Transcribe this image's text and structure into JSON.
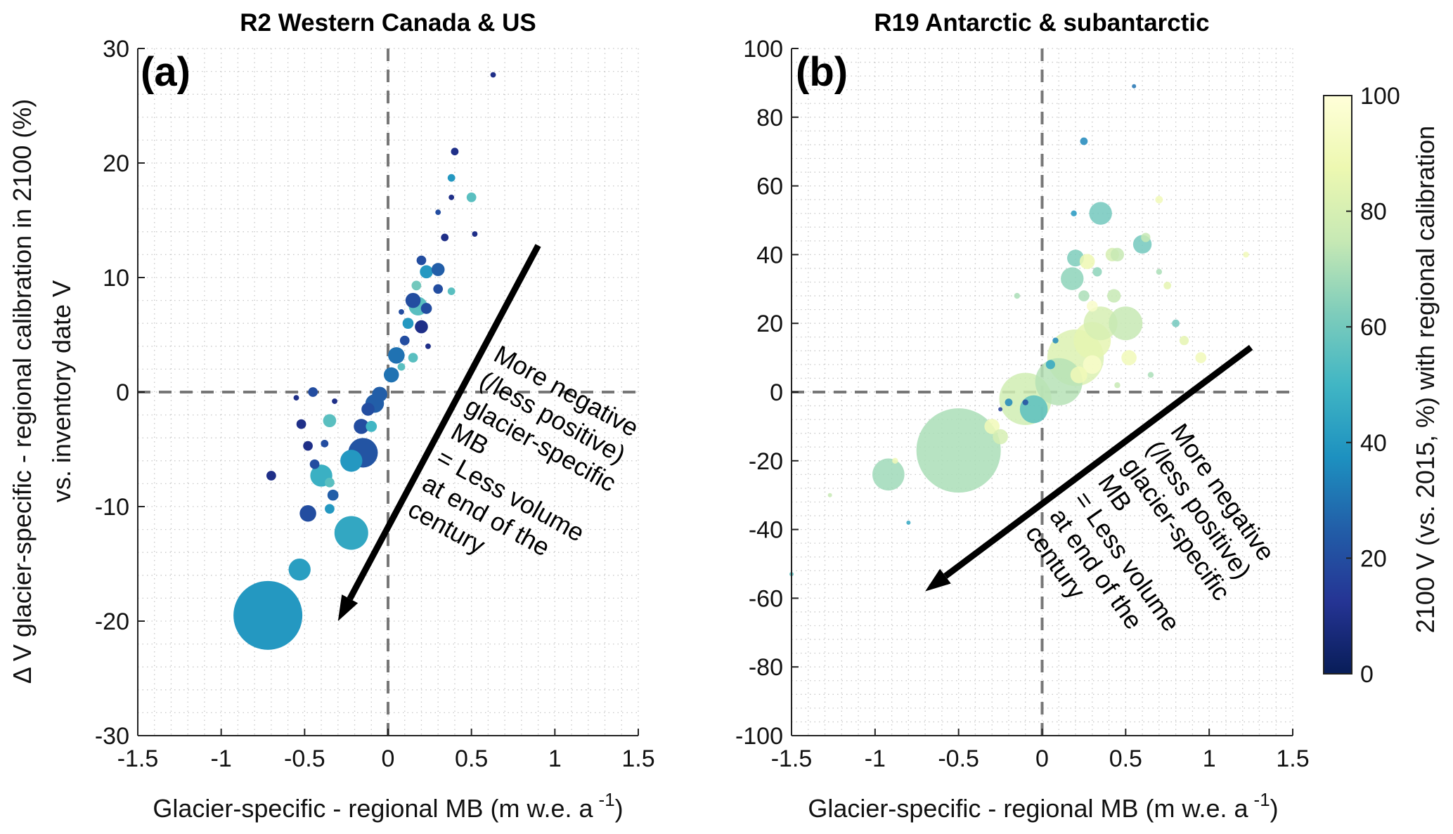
{
  "chart_data": [
    {
      "type": "scatter",
      "panel_label": "(a)",
      "title": "R2 Western Canada & US",
      "xlabel": "Glacier-specific - regional MB (m w.e. a",
      "xlabel_sup": "-1",
      "xlabel_end": ")",
      "ylabel": [
        "Δ V glacier-specific - regional calibration in 2100 (%)",
        "vs. inventory date V"
      ],
      "xlim": [
        -1.5,
        1.5
      ],
      "ylim": [
        -30,
        30
      ],
      "xticks": [
        -1.5,
        -1,
        -0.5,
        0,
        0.5,
        1,
        1.5
      ],
      "yticks": [
        -30,
        -20,
        -10,
        0,
        10,
        20,
        30
      ],
      "grid": "minor dotted",
      "reference_lines": {
        "x": 0,
        "y": 0,
        "style": "dashed"
      },
      "annotation": {
        "lines": [
          "More negative",
          "(/less positive)",
          "glacier-specific",
          "MB",
          "= Less volume",
          "at end of the",
          "century"
        ],
        "arrow_from": [
          0.9,
          12.8
        ],
        "arrow_to": [
          -0.3,
          -20
        ]
      },
      "point_fields": [
        "x",
        "y",
        "relative_size",
        "color_value"
      ],
      "points": [
        [
          -0.72,
          -19.5,
          10,
          40
        ],
        [
          -0.53,
          -15.5,
          3.2,
          42
        ],
        [
          -0.22,
          -12.3,
          4.9,
          45
        ],
        [
          -0.48,
          -10.6,
          2.4,
          20
        ],
        [
          -0.4,
          -7.3,
          3.2,
          48
        ],
        [
          -0.22,
          -6,
          3.2,
          40
        ],
        [
          -0.15,
          -5.3,
          4.3,
          22
        ],
        [
          -0.33,
          -9,
          1.6,
          25
        ],
        [
          -0.35,
          -7.9,
          1.4,
          55
        ],
        [
          -0.35,
          -10.2,
          1.4,
          40
        ],
        [
          -0.7,
          -7.3,
          1.4,
          10
        ],
        [
          -0.52,
          -2.8,
          1.4,
          10
        ],
        [
          -0.48,
          -4.7,
          1.4,
          10
        ],
        [
          -0.35,
          -2.5,
          1.9,
          55
        ],
        [
          -0.38,
          -4.5,
          1.1,
          20
        ],
        [
          -0.16,
          -3,
          2.2,
          20
        ],
        [
          -0.1,
          -3,
          1.6,
          50
        ],
        [
          -0.12,
          -1.5,
          1.9,
          20
        ],
        [
          -0.08,
          -1,
          2.7,
          25
        ],
        [
          -0.05,
          -0.2,
          2.2,
          25
        ],
        [
          0.02,
          1.5,
          2.2,
          30
        ],
        [
          0.05,
          3.2,
          2.4,
          30
        ],
        [
          0.1,
          4.5,
          1.4,
          20
        ],
        [
          0.12,
          6,
          1.6,
          40
        ],
        [
          0.15,
          3,
          1.4,
          55
        ],
        [
          0.08,
          2.2,
          1.1,
          55
        ],
        [
          0.15,
          8,
          2.2,
          20
        ],
        [
          0.18,
          7.5,
          2.7,
          55
        ],
        [
          0.2,
          5.7,
          1.9,
          10
        ],
        [
          0.23,
          7.3,
          1.6,
          20
        ],
        [
          0.17,
          9.3,
          1.4,
          60
        ],
        [
          0.23,
          10.5,
          1.9,
          40
        ],
        [
          0.2,
          11.5,
          1.4,
          20
        ],
        [
          0.3,
          10.7,
          1.9,
          25
        ],
        [
          0.3,
          9,
          1.4,
          20
        ],
        [
          0.38,
          8.8,
          1.1,
          55
        ],
        [
          0.34,
          13.5,
          1.1,
          10
        ],
        [
          0.4,
          21,
          1.1,
          10
        ],
        [
          0.38,
          18.7,
          1.1,
          40
        ],
        [
          0.5,
          17,
          1.4,
          55
        ],
        [
          0.3,
          15.7,
          0.8,
          20
        ],
        [
          0.52,
          13.8,
          0.8,
          10
        ],
        [
          0.63,
          27.7,
          0.8,
          10
        ],
        [
          0.38,
          17,
          0.8,
          10
        ],
        [
          0.08,
          7,
          0.8,
          20
        ],
        [
          0.24,
          4,
          0.8,
          10
        ],
        [
          -0.45,
          0,
          1.4,
          20
        ],
        [
          -0.55,
          -0.5,
          0.8,
          10
        ],
        [
          -0.32,
          -0.8,
          0.8,
          10
        ],
        [
          -0.44,
          -6.3,
          1.4,
          20
        ]
      ]
    },
    {
      "type": "scatter",
      "panel_label": "(b)",
      "title": "R19 Antarctic & subantarctic",
      "xlabel": "Glacier-specific - regional MB (m w.e. a",
      "xlabel_sup": "-1",
      "xlabel_end": ")",
      "xlim": [
        -1.5,
        1.5
      ],
      "ylim": [
        -100,
        100
      ],
      "xticks": [
        -1.5,
        -1,
        -0.5,
        0,
        0.5,
        1,
        1.5
      ],
      "yticks": [
        -100,
        -80,
        -60,
        -40,
        -20,
        0,
        20,
        40,
        60,
        80,
        100
      ],
      "grid": "minor dotted",
      "reference_lines": {
        "x": 0,
        "y": 0,
        "style": "dashed"
      },
      "annotation": {
        "lines": [
          "More negative",
          "(/less positive)",
          "glacier-specific",
          "MB",
          "= Less volume",
          "at end of the",
          "century"
        ],
        "arrow_from": [
          1.25,
          13
        ],
        "arrow_to": [
          -0.7,
          -58
        ]
      },
      "point_fields": [
        "x",
        "y",
        "relative_size",
        "color_value"
      ],
      "points": [
        [
          -0.5,
          -17,
          10,
          70
        ],
        [
          -0.92,
          -24,
          3.8,
          68
        ],
        [
          -0.3,
          -10,
          1.8,
          90
        ],
        [
          -0.25,
          -13,
          1.8,
          80
        ],
        [
          -0.1,
          -2,
          6.2,
          78
        ],
        [
          -0.05,
          -5,
          3.3,
          55
        ],
        [
          0.1,
          3,
          5.6,
          72
        ],
        [
          0.2,
          10,
          6.7,
          82
        ],
        [
          0.3,
          15,
          4.4,
          85
        ],
        [
          0.35,
          20,
          4,
          80
        ],
        [
          0.5,
          20,
          4,
          75
        ],
        [
          0.35,
          52,
          2.7,
          60
        ],
        [
          0.6,
          43,
          2.2,
          60
        ],
        [
          0.2,
          39,
          2,
          62
        ],
        [
          0.18,
          33,
          2.7,
          65
        ],
        [
          0.27,
          38,
          1.8,
          88
        ],
        [
          0.42,
          40,
          1.6,
          80
        ],
        [
          0.45,
          40,
          1.6,
          75
        ],
        [
          0.43,
          28,
          1.6,
          75
        ],
        [
          0.25,
          28,
          1.3,
          70
        ],
        [
          0.33,
          35,
          1.1,
          65
        ],
        [
          0.3,
          25,
          1.3,
          95
        ],
        [
          0.52,
          10,
          1.8,
          90
        ],
        [
          0.3,
          8,
          2.2,
          95
        ],
        [
          0.22,
          5,
          2,
          90
        ],
        [
          0.62,
          45,
          1.1,
          75
        ],
        [
          0.85,
          15,
          1.1,
          85
        ],
        [
          0.95,
          10,
          1.3,
          90
        ],
        [
          0.8,
          20,
          0.9,
          60
        ],
        [
          0.25,
          73,
          0.9,
          35
        ],
        [
          0.19,
          52,
          0.7,
          40
        ],
        [
          0.55,
          89,
          0.5,
          30
        ],
        [
          -0.8,
          -38,
          0.5,
          45
        ],
        [
          -1.5,
          -53,
          0.5,
          55
        ],
        [
          0.7,
          56,
          0.9,
          90
        ],
        [
          -0.15,
          28,
          0.7,
          70
        ],
        [
          1.22,
          40,
          0.7,
          90
        ],
        [
          0.08,
          15,
          0.7,
          35
        ],
        [
          -0.1,
          -3,
          0.7,
          20
        ],
        [
          -0.25,
          -5,
          0.5,
          15
        ],
        [
          -0.88,
          -20,
          0.7,
          90
        ],
        [
          -1.27,
          -30,
          0.5,
          75
        ],
        [
          0.7,
          35,
          0.7,
          70
        ],
        [
          0.75,
          31,
          0.9,
          85
        ],
        [
          0.65,
          5,
          0.7,
          70
        ],
        [
          0.45,
          2,
          0.7,
          75
        ],
        [
          -0.2,
          -3,
          0.9,
          35
        ],
        [
          0.05,
          8,
          1.1,
          45
        ]
      ],
      "colorbar": {
        "label": "2100 V (vs. 2015, %) with regional calibration",
        "range": [
          0,
          100
        ],
        "ticks": [
          0,
          20,
          40,
          60,
          80,
          100
        ],
        "colormap": [
          "#081d58",
          "#253494",
          "#225ea8",
          "#1d91c0",
          "#41b6c4",
          "#7fcdbb",
          "#c7e9b4",
          "#edf8b1",
          "#ffffd9"
        ]
      }
    }
  ]
}
